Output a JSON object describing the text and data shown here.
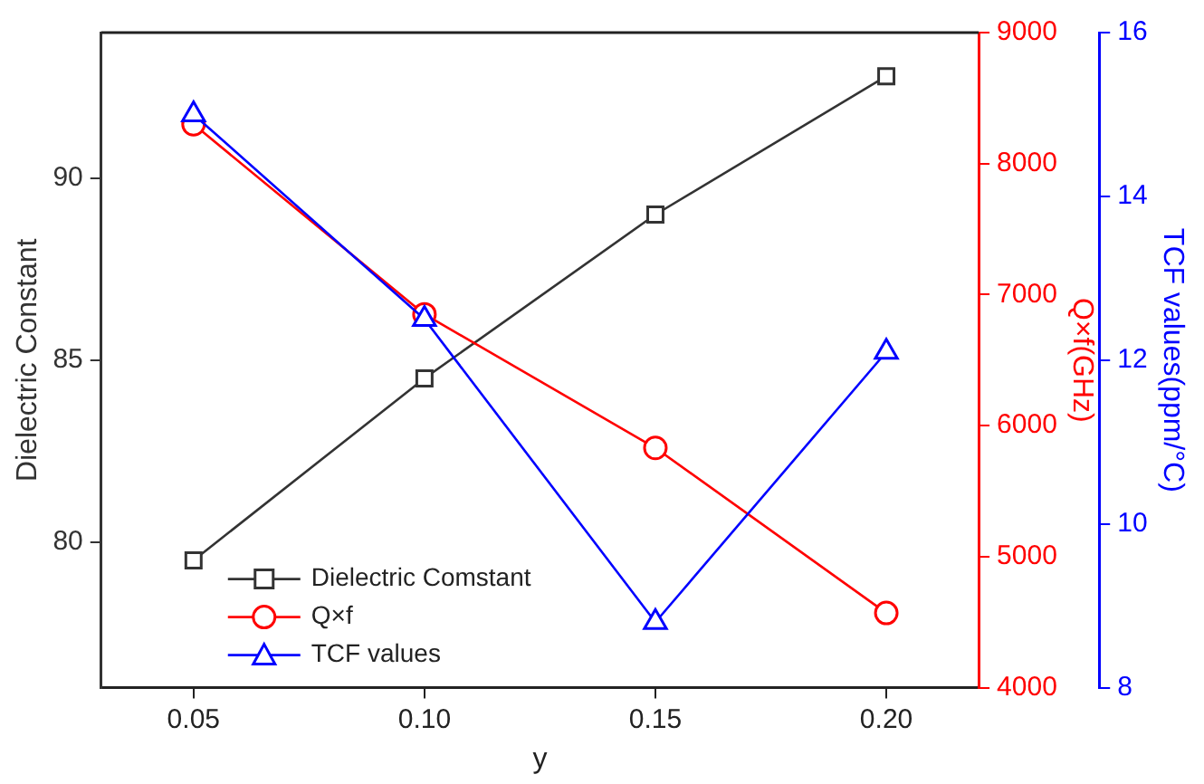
{
  "chart_data": {
    "type": "line",
    "xlabel": "y",
    "ylabel": "Dielectric Constant",
    "y2label": "Q×f(GHz)",
    "y3label": "TCF values(ppm/°C)",
    "x": [
      0.05,
      0.1,
      0.15,
      0.2
    ],
    "xlim": [
      0.03,
      0.22
    ],
    "xticks": [
      {
        "value": 0.05,
        "label": "0.05"
      },
      {
        "value": 0.1,
        "label": "0.10"
      },
      {
        "value": 0.15,
        "label": "0.15"
      },
      {
        "value": 0.2,
        "label": "0.20"
      }
    ],
    "ylim": [
      76,
      94
    ],
    "yticks": [
      80,
      85,
      90
    ],
    "y2lim": [
      4000,
      9000
    ],
    "y2ticks": [
      4000,
      5000,
      6000,
      7000,
      8000,
      9000
    ],
    "y3lim": [
      8,
      16
    ],
    "y3ticks": [
      8,
      10,
      12,
      14,
      16
    ],
    "series": [
      {
        "name": "Dielectric Comstant",
        "color": "#333333",
        "marker": "square",
        "values": [
          79.5,
          84.5,
          89.0,
          92.8
        ]
      },
      {
        "name": "Q×f",
        "color": "#ff0000",
        "marker": "circle",
        "axis": "y2",
        "values": [
          8300,
          6850,
          5830,
          4570
        ]
      },
      {
        "name": "TCF values",
        "color": "#0000ff",
        "marker": "triangle",
        "axis": "y3",
        "values": [
          15.0,
          12.5,
          8.8,
          12.1
        ]
      }
    ],
    "legend": "bottom left",
    "grid": false,
    "line_style": "solid"
  }
}
